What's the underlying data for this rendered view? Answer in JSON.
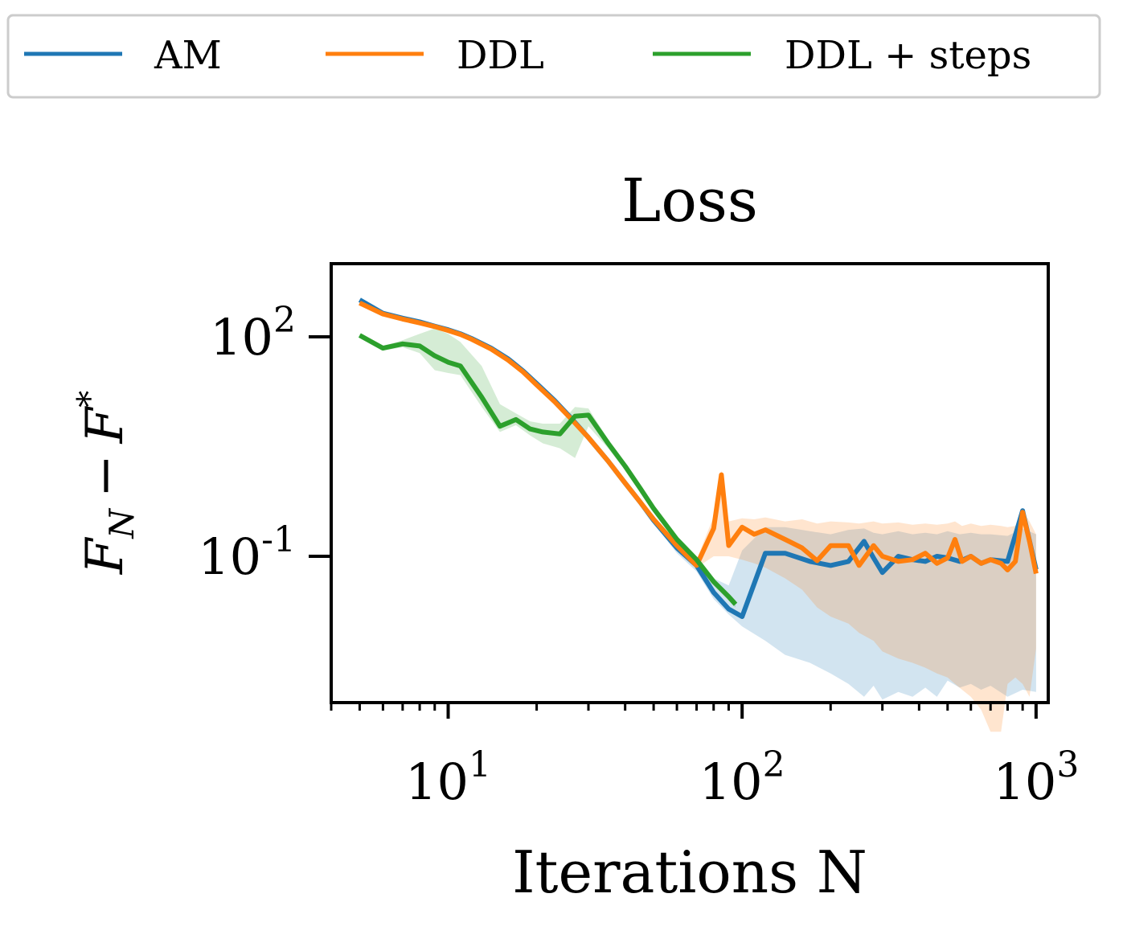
{
  "chart_data": {
    "type": "line",
    "title": "Loss",
    "xlabel": "Iterations N",
    "ylabel": "F_N − F*",
    "ylabel_parts": {
      "base1": "F",
      "sub": "N",
      "minus": "−",
      "base2": "F",
      "sup": "*"
    },
    "xscale": "log",
    "yscale": "log",
    "xlim": [
      4,
      1100
    ],
    "ylim": [
      0.001,
      1000
    ],
    "xticks": [
      {
        "value": 10,
        "base": "10",
        "exp": "1"
      },
      {
        "value": 100,
        "base": "10",
        "exp": "2"
      },
      {
        "value": 1000,
        "base": "10",
        "exp": "3"
      }
    ],
    "yticks": [
      {
        "value": 100,
        "base": "10",
        "exp": "2"
      },
      {
        "value": 0.1,
        "base": "10",
        "exp": "-1"
      }
    ],
    "grid": false,
    "legend": {
      "placement": "top",
      "ncol": 3,
      "entries": [
        "AM",
        "DDL",
        "DDL + steps"
      ]
    },
    "series": [
      {
        "name": "AM",
        "color": "#1f77b4",
        "x": [
          5,
          6,
          7,
          8,
          9,
          10,
          11,
          12,
          14,
          16,
          18,
          20,
          23,
          26,
          30,
          35,
          40,
          45,
          50,
          60,
          70,
          80,
          90,
          100,
          120,
          140,
          170,
          200,
          230,
          260,
          280,
          300,
          340,
          380,
          420,
          460,
          500,
          550,
          600,
          650,
          700,
          800,
          900,
          1000
        ],
        "y": [
          320,
          210,
          180,
          160,
          140,
          125,
          110,
          95,
          70,
          50,
          34,
          23,
          13.5,
          8,
          4.2,
          2.0,
          1.0,
          0.55,
          0.31,
          0.13,
          0.075,
          0.032,
          0.019,
          0.015,
          0.11,
          0.11,
          0.085,
          0.075,
          0.085,
          0.16,
          0.095,
          0.06,
          0.1,
          0.09,
          0.085,
          0.1,
          0.095,
          0.085,
          0.1,
          0.08,
          0.09,
          0.085,
          0.42,
          0.066
        ],
        "band": {
          "lower": [
            310,
            205,
            175,
            155,
            135,
            120,
            105,
            90,
            66,
            47,
            32,
            21,
            12.5,
            7.5,
            3.9,
            1.85,
            0.9,
            0.5,
            0.28,
            0.11,
            0.062,
            0.026,
            0.016,
            0.011,
            0.007,
            0.0045,
            0.0035,
            0.0025,
            0.0018,
            0.0012,
            0.0017,
            0.0011,
            0.0014,
            0.0012,
            0.0016,
            0.0012,
            0.002,
            0.0016,
            0.0018,
            0.0015,
            0.0017,
            0.0012,
            0.0015,
            0.0014
          ],
          "upper": [
            330,
            215,
            185,
            165,
            145,
            130,
            115,
            100,
            74,
            53,
            36,
            25,
            14.5,
            8.5,
            4.5,
            2.15,
            1.1,
            0.6,
            0.34,
            0.15,
            0.09,
            0.05,
            0.04,
            0.12,
            0.25,
            0.25,
            0.22,
            0.2,
            0.23,
            0.24,
            0.21,
            0.2,
            0.22,
            0.2,
            0.21,
            0.2,
            0.22,
            0.2,
            0.21,
            0.2,
            0.2,
            0.19,
            0.24,
            0.2
          ]
        }
      },
      {
        "name": "DDL",
        "color": "#ff7f0e",
        "x": [
          5,
          6,
          7,
          8,
          9,
          10,
          11,
          12,
          14,
          16,
          18,
          20,
          23,
          26,
          30,
          35,
          40,
          45,
          50,
          60,
          70,
          80,
          85,
          90,
          100,
          110,
          120,
          140,
          160,
          180,
          200,
          230,
          250,
          280,
          300,
          340,
          380,
          420,
          460,
          500,
          530,
          560,
          600,
          650,
          700,
          760,
          800,
          850,
          900,
          950,
          1000
        ],
        "y": [
          290,
          205,
          175,
          155,
          138,
          122,
          108,
          93,
          68,
          48,
          33,
          22,
          13,
          7.8,
          4.2,
          2.0,
          1.0,
          0.55,
          0.32,
          0.14,
          0.075,
          0.24,
          1.3,
          0.14,
          0.25,
          0.2,
          0.23,
          0.17,
          0.13,
          0.087,
          0.14,
          0.14,
          0.075,
          0.14,
          0.1,
          0.085,
          0.09,
          0.11,
          0.08,
          0.095,
          0.17,
          0.085,
          0.1,
          0.08,
          0.09,
          0.08,
          0.065,
          0.085,
          0.4,
          0.16,
          0.058
        ],
        "band": {
          "lower": [
            280,
            200,
            170,
            150,
            133,
            117,
            103,
            89,
            65,
            46,
            31,
            21,
            12.3,
            7.4,
            4.0,
            1.9,
            0.95,
            0.52,
            0.3,
            0.13,
            0.07,
            0.1,
            0.1,
            0.1,
            0.09,
            0.08,
            0.07,
            0.05,
            0.035,
            0.02,
            0.015,
            0.012,
            0.009,
            0.007,
            0.005,
            0.004,
            0.0035,
            0.003,
            0.0025,
            0.0022,
            0.0018,
            0.0015,
            0.0012,
            0.0008,
            0.0004,
            0.0004,
            0.0018,
            0.0022,
            0.0018,
            0.0012,
            0.0055
          ],
          "upper": [
            300,
            210,
            180,
            160,
            143,
            127,
            113,
            97,
            71,
            50,
            35,
            23,
            13.7,
            8.2,
            4.4,
            2.1,
            1.05,
            0.58,
            0.34,
            0.16,
            0.09,
            0.35,
            1.5,
            0.3,
            0.33,
            0.32,
            0.34,
            0.3,
            0.32,
            0.28,
            0.3,
            0.29,
            0.28,
            0.3,
            0.28,
            0.29,
            0.27,
            0.28,
            0.27,
            0.28,
            0.3,
            0.26,
            0.28,
            0.26,
            0.27,
            0.26,
            0.25,
            0.26,
            0.42,
            0.3,
            0.2
          ]
        }
      },
      {
        "name": "DDL + steps",
        "color": "#2ca02c",
        "x": [
          5,
          6,
          7,
          8,
          9,
          10,
          11,
          13,
          15,
          17,
          19,
          21,
          24,
          27,
          30,
          35,
          40,
          45,
          50,
          60,
          70,
          80,
          90,
          95
        ],
        "y": [
          105,
          70,
          80,
          75,
          55,
          45,
          40,
          15,
          6,
          7.4,
          5.5,
          5.0,
          4.7,
          8.2,
          8.5,
          3.5,
          1.7,
          0.85,
          0.45,
          0.17,
          0.09,
          0.045,
          0.028,
          0.022
        ],
        "band": {
          "lower": [
            100,
            65,
            72,
            60,
            35,
            32,
            30,
            11,
            5,
            6.2,
            4.5,
            3.5,
            3.0,
            2.2,
            6,
            3.0,
            1.5,
            0.75,
            0.4,
            0.15,
            0.08,
            0.04,
            0.025,
            0.02
          ],
          "upper": [
            110,
            75,
            90,
            110,
            130,
            110,
            85,
            40,
            12,
            9,
            7,
            6.5,
            6.5,
            11,
            10.5,
            4.0,
            1.9,
            0.95,
            0.5,
            0.19,
            0.1,
            0.05,
            0.031,
            0.025
          ]
        }
      }
    ]
  }
}
